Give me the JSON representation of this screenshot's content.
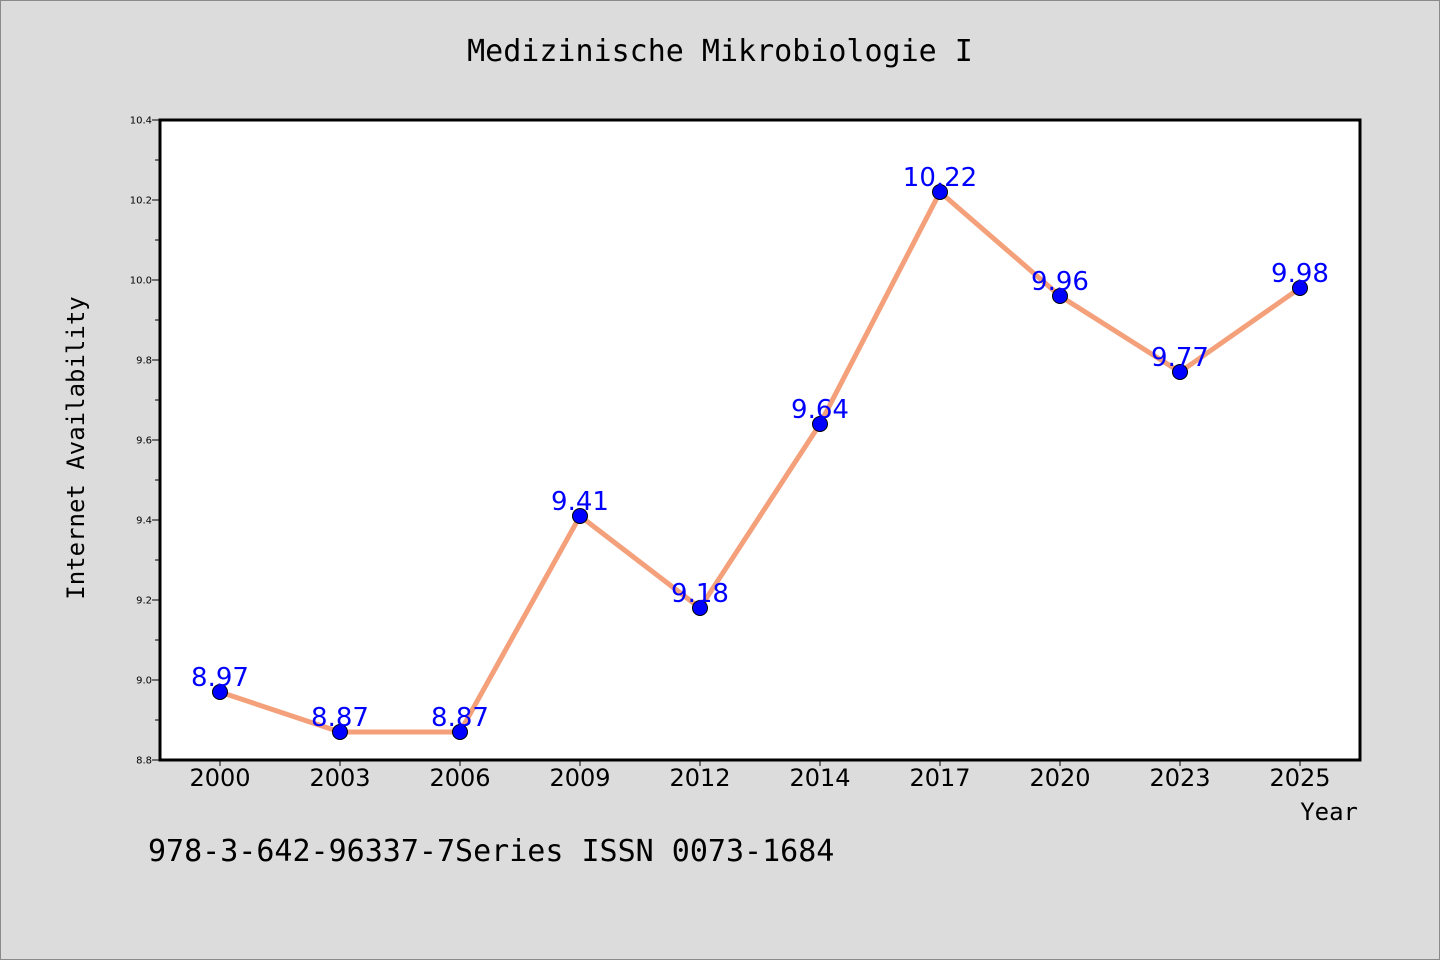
{
  "header": {
    "title": "Medizinische Mikrobiologie I"
  },
  "footer": {
    "text": "978-3-642-96337-7Series ISSN 0073-1684"
  },
  "chart_data": {
    "type": "line",
    "title": "Medizinische Mikrobiologie I",
    "xlabel": "Year",
    "ylabel": "Internet Availability",
    "categories": [
      "2000",
      "2003",
      "2006",
      "2009",
      "2012",
      "2014",
      "2017",
      "2020",
      "2023",
      "2025"
    ],
    "series": [
      {
        "values": [
          8.97,
          8.87,
          8.87,
          9.41,
          9.18,
          9.64,
          10.22,
          9.96,
          9.77,
          9.98
        ],
        "labels": [
          "8.97",
          "8.87",
          "8.87",
          "9.41",
          "9.18",
          "9.64",
          "10.22",
          "9.96",
          "9.77",
          "9.98"
        ]
      }
    ],
    "ylim": [
      8.8,
      10.4
    ],
    "yticks": [
      "8.8",
      "9.0",
      "9.2",
      "9.4",
      "9.6",
      "9.8",
      "10.0",
      "10.2",
      "10.4"
    ],
    "grid": false,
    "legend": "none",
    "colors": {
      "line": "#f4a07a",
      "marker": "#0000ff",
      "data_label": "#0000ff",
      "plot_background": "#ffffff",
      "page_background": "#dcdcdc"
    }
  }
}
